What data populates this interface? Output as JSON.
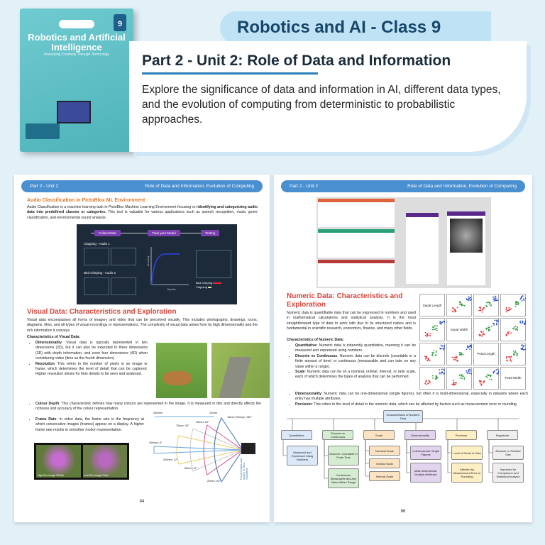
{
  "cover": {
    "title": "Robotics and Artificial Intelligence",
    "subtitle": "Innovating Creativity Through Technology",
    "class_number": "9"
  },
  "banner": {
    "title": "Robotics and AI - Class 9"
  },
  "intro": {
    "heading": "Part 2 - Unit 2: Role of Data and Information",
    "description": "Explore the significance of data and information in AI, different data types, and the evolution of computing from deterministic to probabilistic approaches."
  },
  "left_page": {
    "header_left": "Part 2 - Unit 2",
    "header_right": "Role of Data and Information, Evolution of Computing",
    "audio_heading": "Audio Classification in PictoBlox ML Environment",
    "audio_text_1": "Audio Classification is a machine learning task in PictoBlox Machine Learning Environment focusing on ",
    "audio_text_bold": "identifying and categorizing audio data into predefined classes or categories.",
    "audio_text_2": " This tool is valuable for various applications such as speech recognition, music genre classification, and environmental sound analysis.",
    "diagram": {
      "steps": [
        "Collect Data",
        "Train your Model",
        "Testing"
      ],
      "class1": "Clapping - Audio 1",
      "class2": "Bird Chirping - Audio 2",
      "y_axis": "Accuracy",
      "x_axis": "Epochs",
      "legend": [
        "Bird Chirping",
        "Clapping"
      ]
    },
    "visual_heading": "Visual Data: Characteristics and Exploration",
    "visual_text": "Visual data encompasses all forms of imagery and video that can be perceived visually. This includes photographs, drawings, icons, diagrams, films, and all types of visual recordings or representations. The complexity of visual data arises from its high dimensionality and the rich information it conveys.",
    "char_heading": "Characteristics of Visual Data:",
    "bullets": [
      {
        "term": "Dimensionality",
        "text": ": Visual data is typically represented in two dimensions (2D), but it can also be extended to three dimensions (3D) with depth information, and even four dimensions (4D) when considering video (time as the fourth dimension)."
      },
      {
        "term": "Resolution",
        "text": ": This refers to the number of pixels in an image or frame, which determines the level of detail that can be captured. Higher resolution allows for finer details to be seen and analysed."
      },
      {
        "term": "Colour Depth",
        "text": ": This characteristic defines how many colours are represented in the image. It is measured in bits and directly affects the richness and accuracy of the colour representation."
      },
      {
        "term": "Frame Rate",
        "text": ": In video data, the frame rate is the frequency at which consecutive images (frames) appear on a display. A higher frame rate results in smoother motion representation."
      }
    ],
    "flower_captions": [
      "High Res Image 300dpi",
      "Low Res Image 72dpi"
    ],
    "lens": {
      "range_left": "400mm",
      "range_right": "20mm",
      "labels": [
        "15mm Fisheye: 180°",
        "35mm: 63°",
        "70mm: 34°",
        "400mm: 6°",
        "200mm: 12°",
        "50mm: 47°",
        "20mm: 94°"
      ],
      "side_caption": "Focal lengths and angles of view visualised"
    },
    "page_number": "84"
  },
  "right_page": {
    "header_left": "Part 2 - Unit 2",
    "header_right": "Role of Data and Information, Evolution of Computing",
    "numeric_heading": "Numeric Data: Characteristics and Exploration",
    "numeric_text": "Numeric data is quantifiable data that can be expressed in numbers and used in mathematical calculations and statistical analysis. It is the most straightforward type of data to work with due to its structured nature and is fundamental in scientific research, economics, finance, and many other fields.",
    "char_heading": "Characteristics of Numeric Data:",
    "bullets": [
      {
        "term": "Quantitative",
        "text": ": Numeric data is inherently quantitative, meaning it can be measured and expressed using numbers."
      },
      {
        "term": "Discrete vs Continuous",
        "text": ": Numeric data can be discrete (countable in a finite amount of time) or continuous (measurable and can take on any value within a range)."
      },
      {
        "term": "Scale",
        "text": ": Numeric data can be on a nominal, ordinal, interval, or ratio scale, each of which determines the types of analysis that can be performed."
      },
      {
        "term": "Dimensionality",
        "text": ": Numeric data can be one-dimensional (single figures), but often it is multi-dimensional, especially in datasets where each entry has multiple attributes."
      },
      {
        "term": "Precision",
        "text": ": This refers to the level of detail in the numeric data, which can be affected by factors such as measurement error or rounding."
      }
    ],
    "scatter_labels": [
      "Sepal Length",
      "Sepal Width",
      "Petal Length",
      "Petal Width"
    ],
    "flow": {
      "root": "Characteristics of Numeric Data",
      "columns": [
        {
          "title": "Quantitative",
          "color": "blue",
          "children": [
            "Measured and Expressed Using Numbers"
          ]
        },
        {
          "title": "Discrete vs Continuous",
          "color": "green",
          "children": [
            "Discrete: Countable in Finite Time",
            "Continuous: Measurable and Any Value Within Range"
          ]
        },
        {
          "title": "Scale",
          "color": "orange",
          "children": [
            "Nominal Scale",
            "Ordinal Scale",
            "Interval Scale"
          ]
        },
        {
          "title": "Dimensionality",
          "color": "purple",
          "children": [
            "1-dimensional: Single Figures",
            "Multi-dimensional: Multiple Attributes"
          ]
        },
        {
          "title": "Precision",
          "color": "yellow",
          "children": [
            "Level of Detail in Data",
            "Affected by Measurement Error or Rounding"
          ]
        },
        {
          "title": "Magnitude",
          "color": "grey",
          "children": [
            "Absolute or Relative Size",
            "Important for Comparison and Statistical Analysis"
          ]
        }
      ]
    },
    "page_number": "86"
  }
}
